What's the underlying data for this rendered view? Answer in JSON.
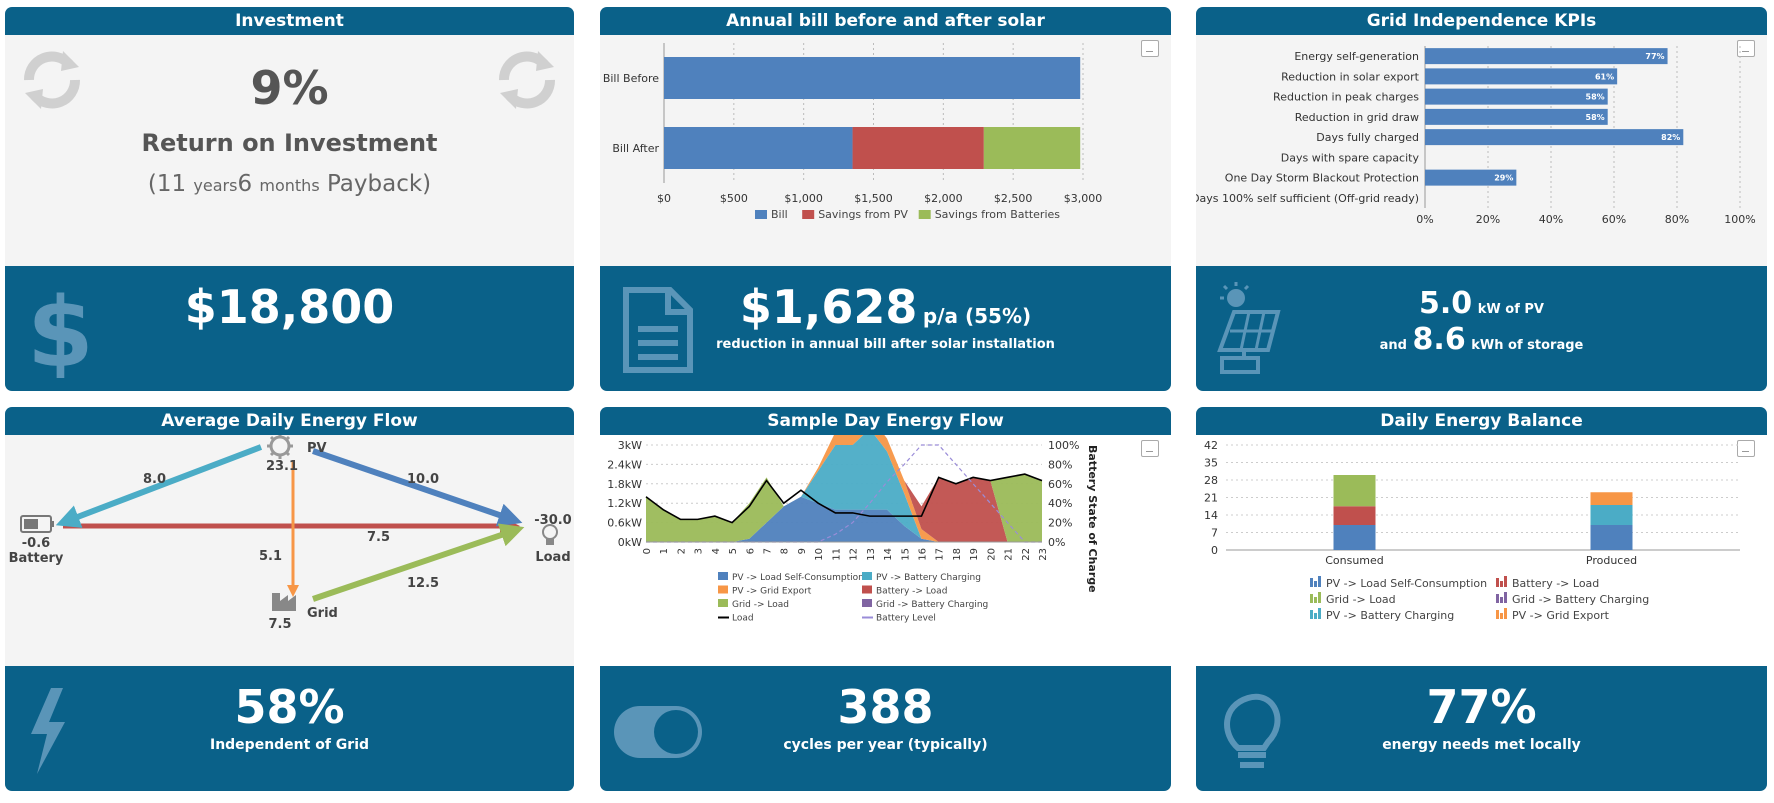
{
  "investment": {
    "title": "Investment",
    "roi_value": "9%",
    "roi_label": "Return on Investment",
    "payback_open": "(11",
    "payback_years_unit": "years",
    "payback_months": "6",
    "payback_months_unit": "months",
    "payback_close": "Payback)",
    "amount": "$18,800"
  },
  "bill": {
    "title": "Annual bill before and after solar",
    "amount": "$1,628",
    "per": "p/a (55%)",
    "caption": "reduction in annual bill after solar installation"
  },
  "kpis": {
    "title": "Grid Independence KPIs",
    "pv_value": "5.0",
    "pv_unit": "kW of PV",
    "storage_prefix": "and",
    "storage_value": "8.6",
    "storage_unit": "kWh of storage"
  },
  "flow": {
    "title": "Average Daily Energy Flow",
    "pv_label": "PV",
    "pv_value": "23.1",
    "battery_label": "Battery",
    "battery_value": "-0.6",
    "load_label": "Load",
    "load_value": "-30.0",
    "grid_label": "Grid",
    "grid_value": "7.5",
    "pv_to_battery": "8.0",
    "pv_to_load": "10.0",
    "pv_to_grid": "5.1",
    "battery_to_load": "7.5",
    "grid_to_load": "12.5",
    "independence_value": "58%",
    "independence_label": "Independent of Grid"
  },
  "sample_day": {
    "title": "Sample Day Energy Flow",
    "cycles_value": "388",
    "cycles_label": "cycles per year (typically)"
  },
  "balance": {
    "title": "Daily Energy Balance",
    "met_value": "77%",
    "met_label": "energy needs met locally"
  },
  "colors": {
    "header_blue": "#0a6189",
    "bill": "#4f81bd",
    "savings_pv": "#c0504d",
    "savings_batt": "#9bbb59",
    "pv_battery": "#4bacc6",
    "pv_grid": "#f79646",
    "grid_battery": "#8064a2"
  },
  "icons": {
    "investment_left": "refresh-icon",
    "investment_right": "refresh-icon",
    "investment_foot": "dollar-icon",
    "bill_foot": "document-icon",
    "kpis_foot": "solar-panel-icon",
    "flow_foot": "lightning-icon",
    "cycles_foot": "toggle-icon",
    "balance_foot": "lightbulb-icon"
  },
  "chart_data": [
    {
      "type": "bar",
      "orientation": "horizontal",
      "stacked": true,
      "categories": [
        "Bill Before",
        "Bill After"
      ],
      "series": [
        {
          "name": "Bill",
          "values": [
            2980,
            1350
          ]
        },
        {
          "name": "Savings from PV",
          "values": [
            0,
            940
          ]
        },
        {
          "name": "Savings from Batteries",
          "values": [
            0,
            690
          ]
        }
      ],
      "xlim": [
        0,
        3000
      ],
      "xticks": [
        "$0",
        "$500",
        "$1,000",
        "$1,500",
        "$2,000",
        "$2,500",
        "$3,000"
      ],
      "grid": true,
      "legend": "bottom"
    },
    {
      "type": "bar",
      "orientation": "horizontal",
      "categories": [
        "Energy self-generation",
        "Reduction in solar export",
        "Reduction in peak charges",
        "Reduction in grid draw",
        "Days fully charged",
        "Days with spare capacity",
        "One Day Storm Blackout Protection",
        "Days 100% self sufficient (Off-grid ready)"
      ],
      "values": [
        77,
        61,
        58,
        58,
        82,
        0,
        29,
        0
      ],
      "data_labels": [
        "77%",
        "61%",
        "58%",
        "58%",
        "82%",
        "",
        "29%",
        ""
      ],
      "xlim": [
        0,
        100
      ],
      "xticks": [
        "0%",
        "20%",
        "40%",
        "60%",
        "80%",
        "100%"
      ],
      "grid": true
    },
    {
      "type": "area",
      "stacked": true,
      "x": [
        0,
        1,
        2,
        3,
        4,
        5,
        6,
        7,
        8,
        9,
        10,
        11,
        12,
        13,
        14,
        15,
        16,
        17,
        18,
        19,
        20,
        21,
        22,
        23
      ],
      "series": [
        {
          "name": "PV -> Load Self-Consumption",
          "values": [
            0,
            0,
            0,
            0,
            0,
            0,
            0.1,
            0.6,
            1.1,
            1.4,
            1.2,
            1.0,
            1.0,
            1.0,
            1.0,
            0.5,
            0.1,
            0,
            0,
            0,
            0,
            0,
            0,
            0
          ]
        },
        {
          "name": "PV -> Battery Charging",
          "values": [
            0,
            0,
            0,
            0,
            0,
            0,
            0,
            0,
            0,
            0,
            1.0,
            2.0,
            2.0,
            2.5,
            1.8,
            1.0,
            0,
            0,
            0,
            0,
            0,
            0,
            0,
            0
          ]
        },
        {
          "name": "PV -> Grid Export",
          "values": [
            0,
            0,
            0,
            0,
            0,
            0,
            0,
            0,
            0,
            0,
            0.1,
            0.4,
            0.4,
            0.4,
            0.4,
            0.4,
            0.3,
            0,
            0,
            0,
            0,
            0,
            0,
            0
          ]
        },
        {
          "name": "Battery -> Load",
          "values": [
            0,
            0,
            0,
            0,
            0,
            0,
            0,
            0,
            0,
            0,
            0,
            0,
            0,
            0,
            0,
            0,
            0.7,
            2.0,
            1.8,
            2.0,
            1.9,
            0,
            0,
            0
          ]
        },
        {
          "name": "Grid -> Load",
          "values": [
            1.4,
            1.0,
            0.7,
            0.7,
            0.8,
            0.6,
            1.1,
            1.4,
            0,
            0,
            0,
            0,
            0,
            0,
            0,
            0,
            0,
            0,
            0,
            0,
            0,
            2.0,
            2.1,
            1.9
          ]
        },
        {
          "name": "Grid -> Battery Charging",
          "values": [
            0,
            0,
            0,
            0,
            0,
            0,
            0,
            0,
            0,
            0,
            0,
            0,
            0,
            0,
            0,
            0,
            0,
            0,
            0,
            0,
            0,
            0,
            0,
            0
          ]
        },
        {
          "name": "Load",
          "type": "line",
          "values": [
            1.4,
            1.0,
            0.7,
            0.7,
            0.8,
            0.6,
            1.1,
            1.9,
            1.2,
            1.6,
            1.2,
            0.9,
            0.9,
            0.8,
            0.8,
            0.8,
            0.8,
            2.0,
            1.8,
            2.0,
            1.9,
            2.0,
            2.1,
            1.9
          ]
        },
        {
          "name": "Battery Level",
          "type": "line",
          "axis": "right",
          "values": [
            0,
            0,
            0,
            0,
            0,
            0,
            0,
            0,
            0,
            0,
            0,
            8,
            20,
            40,
            62,
            80,
            100,
            100,
            80,
            60,
            40,
            20,
            0,
            0
          ]
        }
      ],
      "yticks": [
        "0kW",
        "0.6kW",
        "1.2kW",
        "1.8kW",
        "2.4kW",
        "3kW"
      ],
      "ylim": [
        0,
        3
      ],
      "y2ticks": [
        "0%",
        "20%",
        "40%",
        "60%",
        "80%",
        "100%"
      ],
      "y2label": "Battery State of Charge",
      "legend": "bottom"
    },
    {
      "type": "bar",
      "stacked": true,
      "categories": [
        "Consumed",
        "Produced"
      ],
      "series": [
        {
          "name": "PV -> Load Self-Consumption",
          "values": [
            10,
            10
          ]
        },
        {
          "name": "Battery -> Load",
          "values": [
            7.5,
            0
          ]
        },
        {
          "name": "Grid -> Load",
          "values": [
            12.5,
            0
          ]
        },
        {
          "name": "Grid -> Battery Charging",
          "values": [
            0,
            0
          ]
        },
        {
          "name": "PV -> Battery Charging",
          "values": [
            0,
            8
          ]
        },
        {
          "name": "PV -> Grid Export",
          "values": [
            0,
            5.1
          ]
        }
      ],
      "ylim": [
        0,
        42
      ],
      "yticks": [
        "0",
        "7",
        "14",
        "21",
        "28",
        "35",
        "42"
      ],
      "legend": "bottom"
    }
  ]
}
